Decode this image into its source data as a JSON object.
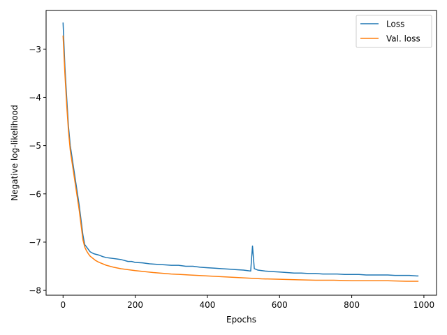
{
  "chart_data": {
    "type": "line",
    "title": "",
    "xlabel": "Epochs",
    "ylabel": "Negative log-likelihood",
    "xlim": [
      -47,
      1035
    ],
    "ylim": [
      -8.1,
      -2.2
    ],
    "xticks": [
      0,
      200,
      400,
      600,
      800,
      1000
    ],
    "xtick_labels": [
      "0",
      "200",
      "400",
      "600",
      "800",
      "1000"
    ],
    "yticks": [
      -8,
      -7,
      -6,
      -5,
      -4,
      -3
    ],
    "ytick_labels": [
      "−8",
      "−7",
      "−6",
      "−5",
      "−4",
      "−3"
    ],
    "grid": false,
    "legend_position": "top-right",
    "series": [
      {
        "name": "Loss",
        "color": "#1f77b4",
        "x": [
          0,
          5,
          10,
          15,
          20,
          25,
          30,
          35,
          40,
          45,
          50,
          55,
          60,
          65,
          70,
          75,
          80,
          85,
          90,
          95,
          100,
          110,
          120,
          130,
          140,
          150,
          160,
          170,
          180,
          190,
          200,
          220,
          240,
          260,
          280,
          300,
          320,
          340,
          360,
          380,
          400,
          420,
          440,
          460,
          480,
          500,
          520,
          525,
          530,
          540,
          560,
          580,
          600,
          620,
          640,
          660,
          680,
          700,
          720,
          740,
          760,
          780,
          800,
          820,
          840,
          860,
          880,
          900,
          920,
          940,
          960,
          980,
          985
        ],
        "y": [
          -2.45,
          -3.35,
          -4.0,
          -4.6,
          -5.0,
          -5.25,
          -5.5,
          -5.75,
          -6.0,
          -6.25,
          -6.55,
          -6.85,
          -7.05,
          -7.1,
          -7.15,
          -7.2,
          -7.22,
          -7.24,
          -7.25,
          -7.26,
          -7.27,
          -7.3,
          -7.32,
          -7.33,
          -7.34,
          -7.35,
          -7.36,
          -7.38,
          -7.4,
          -7.4,
          -7.42,
          -7.43,
          -7.45,
          -7.46,
          -7.47,
          -7.48,
          -7.48,
          -7.5,
          -7.5,
          -7.52,
          -7.53,
          -7.54,
          -7.55,
          -7.56,
          -7.57,
          -7.58,
          -7.6,
          -7.08,
          -7.55,
          -7.58,
          -7.6,
          -7.61,
          -7.62,
          -7.63,
          -7.64,
          -7.64,
          -7.65,
          -7.65,
          -7.66,
          -7.66,
          -7.66,
          -7.67,
          -7.67,
          -7.67,
          -7.68,
          -7.68,
          -7.68,
          -7.68,
          -7.69,
          -7.69,
          -7.69,
          -7.7,
          -7.7
        ]
      },
      {
        "name": "Val. loss",
        "color": "#ff7f0e",
        "x": [
          0,
          5,
          10,
          15,
          20,
          25,
          30,
          35,
          40,
          45,
          50,
          55,
          60,
          65,
          70,
          75,
          80,
          85,
          90,
          95,
          100,
          120,
          140,
          160,
          180,
          200,
          250,
          300,
          350,
          400,
          450,
          500,
          550,
          600,
          650,
          700,
          750,
          800,
          850,
          900,
          950,
          985
        ],
        "y": [
          -2.72,
          -3.5,
          -4.15,
          -4.7,
          -5.1,
          -5.35,
          -5.6,
          -5.85,
          -6.1,
          -6.35,
          -6.65,
          -6.95,
          -7.1,
          -7.18,
          -7.24,
          -7.29,
          -7.32,
          -7.35,
          -7.38,
          -7.4,
          -7.42,
          -7.48,
          -7.52,
          -7.55,
          -7.57,
          -7.59,
          -7.63,
          -7.66,
          -7.68,
          -7.7,
          -7.72,
          -7.74,
          -7.76,
          -7.77,
          -7.78,
          -7.79,
          -7.79,
          -7.8,
          -7.8,
          -7.8,
          -7.81,
          -7.81
        ]
      }
    ]
  }
}
